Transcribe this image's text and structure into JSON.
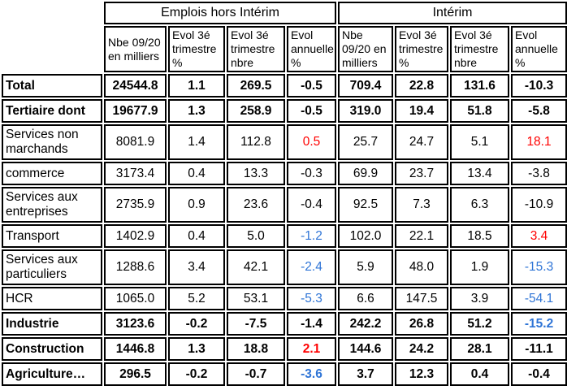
{
  "colors": {
    "red": "#FF0000",
    "blue": "#2E74D6",
    "text": "#000000",
    "border": "#000000"
  },
  "table": {
    "group_headers": [
      "Emplois hors Intérim",
      "Intérim"
    ],
    "column_headers": [
      "Nbe 09/20 en milliers",
      "Evol 3é trimestre %",
      "Evol 3é trimestre nbre",
      "Evol annuelle %",
      "Nbe 09/20 en milliers",
      "Evol 3é trimestre %",
      "Evol 3é trimestre nbre",
      "Evol annuelle %"
    ],
    "rows": [
      {
        "label": "Total",
        "bold": true,
        "tall": false,
        "values": [
          "24544.8",
          "1.1",
          "269.5",
          "-0.5",
          "709.4",
          "22.8",
          "131.6",
          "-10.3"
        ],
        "value_colors": [
          "k",
          "k",
          "k",
          "k",
          "k",
          "k",
          "k",
          "k"
        ]
      },
      {
        "label": "Tertiaire dont",
        "bold": true,
        "tall": false,
        "values": [
          "19677.9",
          "1.3",
          "258.9",
          "-0.5",
          "319.0",
          "19.4",
          "51.8",
          "-5.8"
        ],
        "value_colors": [
          "k",
          "k",
          "k",
          "k",
          "k",
          "k",
          "k",
          "k"
        ]
      },
      {
        "label": "Services non marchands",
        "bold": false,
        "tall": true,
        "values": [
          "8081.9",
          "1.4",
          "112.8",
          "0.5",
          "25.7",
          "24.7",
          "5.1",
          "18.1"
        ],
        "value_colors": [
          "k",
          "k",
          "k",
          "r",
          "k",
          "k",
          "k",
          "r"
        ]
      },
      {
        "label": "commerce",
        "bold": false,
        "tall": false,
        "values": [
          "3173.4",
          "0.4",
          "13.3",
          "-0.3",
          "69.9",
          "23.7",
          "13.4",
          "-3.8"
        ],
        "value_colors": [
          "k",
          "k",
          "k",
          "k",
          "k",
          "k",
          "k",
          "k"
        ]
      },
      {
        "label": "Services aux entreprises",
        "bold": false,
        "tall": true,
        "values": [
          "2735.9",
          "0.9",
          "23.6",
          "-0.4",
          "92.5",
          "7.3",
          "6.3",
          "-10.9"
        ],
        "value_colors": [
          "k",
          "k",
          "k",
          "k",
          "k",
          "k",
          "k",
          "k"
        ]
      },
      {
        "label": "Transport",
        "bold": false,
        "tall": false,
        "values": [
          "1402.9",
          "0.4",
          "5.0",
          "-1.2",
          "102.0",
          "22.1",
          "18.5",
          "3.4"
        ],
        "value_colors": [
          "k",
          "k",
          "k",
          "b",
          "k",
          "k",
          "k",
          "r"
        ]
      },
      {
        "label": "Services aux particuliers",
        "bold": false,
        "tall": true,
        "values": [
          "1288.6",
          "3.4",
          "42.1",
          "-2.4",
          "5.9",
          "48.0",
          "1.9",
          "-15.3"
        ],
        "value_colors": [
          "k",
          "k",
          "k",
          "b",
          "k",
          "k",
          "k",
          "b"
        ]
      },
      {
        "label": "HCR",
        "bold": false,
        "tall": false,
        "values": [
          "1065.0",
          "5.2",
          "53.1",
          "-5.3",
          "6.6",
          "147.5",
          "3.9",
          "-54.1"
        ],
        "value_colors": [
          "k",
          "k",
          "k",
          "b",
          "k",
          "k",
          "k",
          "b"
        ]
      },
      {
        "label": "Industrie",
        "bold": true,
        "tall": false,
        "values": [
          "3123.6",
          "-0.2",
          "-7.5",
          "-1.4",
          "242.2",
          "26.8",
          "51.2",
          "-15.2"
        ],
        "value_colors": [
          "k",
          "k",
          "k",
          "k",
          "k",
          "k",
          "k",
          "b"
        ]
      },
      {
        "label": "Construction",
        "bold": true,
        "tall": false,
        "values": [
          "1446.8",
          "1.3",
          "18.8",
          "2.1",
          "144.6",
          "24.2",
          "28.1",
          "-11.1"
        ],
        "value_colors": [
          "k",
          "k",
          "k",
          "r",
          "k",
          "k",
          "k",
          "k"
        ]
      },
      {
        "label": "Agriculture…",
        "bold": true,
        "tall": false,
        "values": [
          "296.5",
          "-0.2",
          "-0.7",
          "-3.6",
          "3.7",
          "12.3",
          "0.4",
          "-0.4"
        ],
        "value_colors": [
          "k",
          "k",
          "k",
          "b",
          "k",
          "k",
          "k",
          "k"
        ]
      }
    ]
  }
}
